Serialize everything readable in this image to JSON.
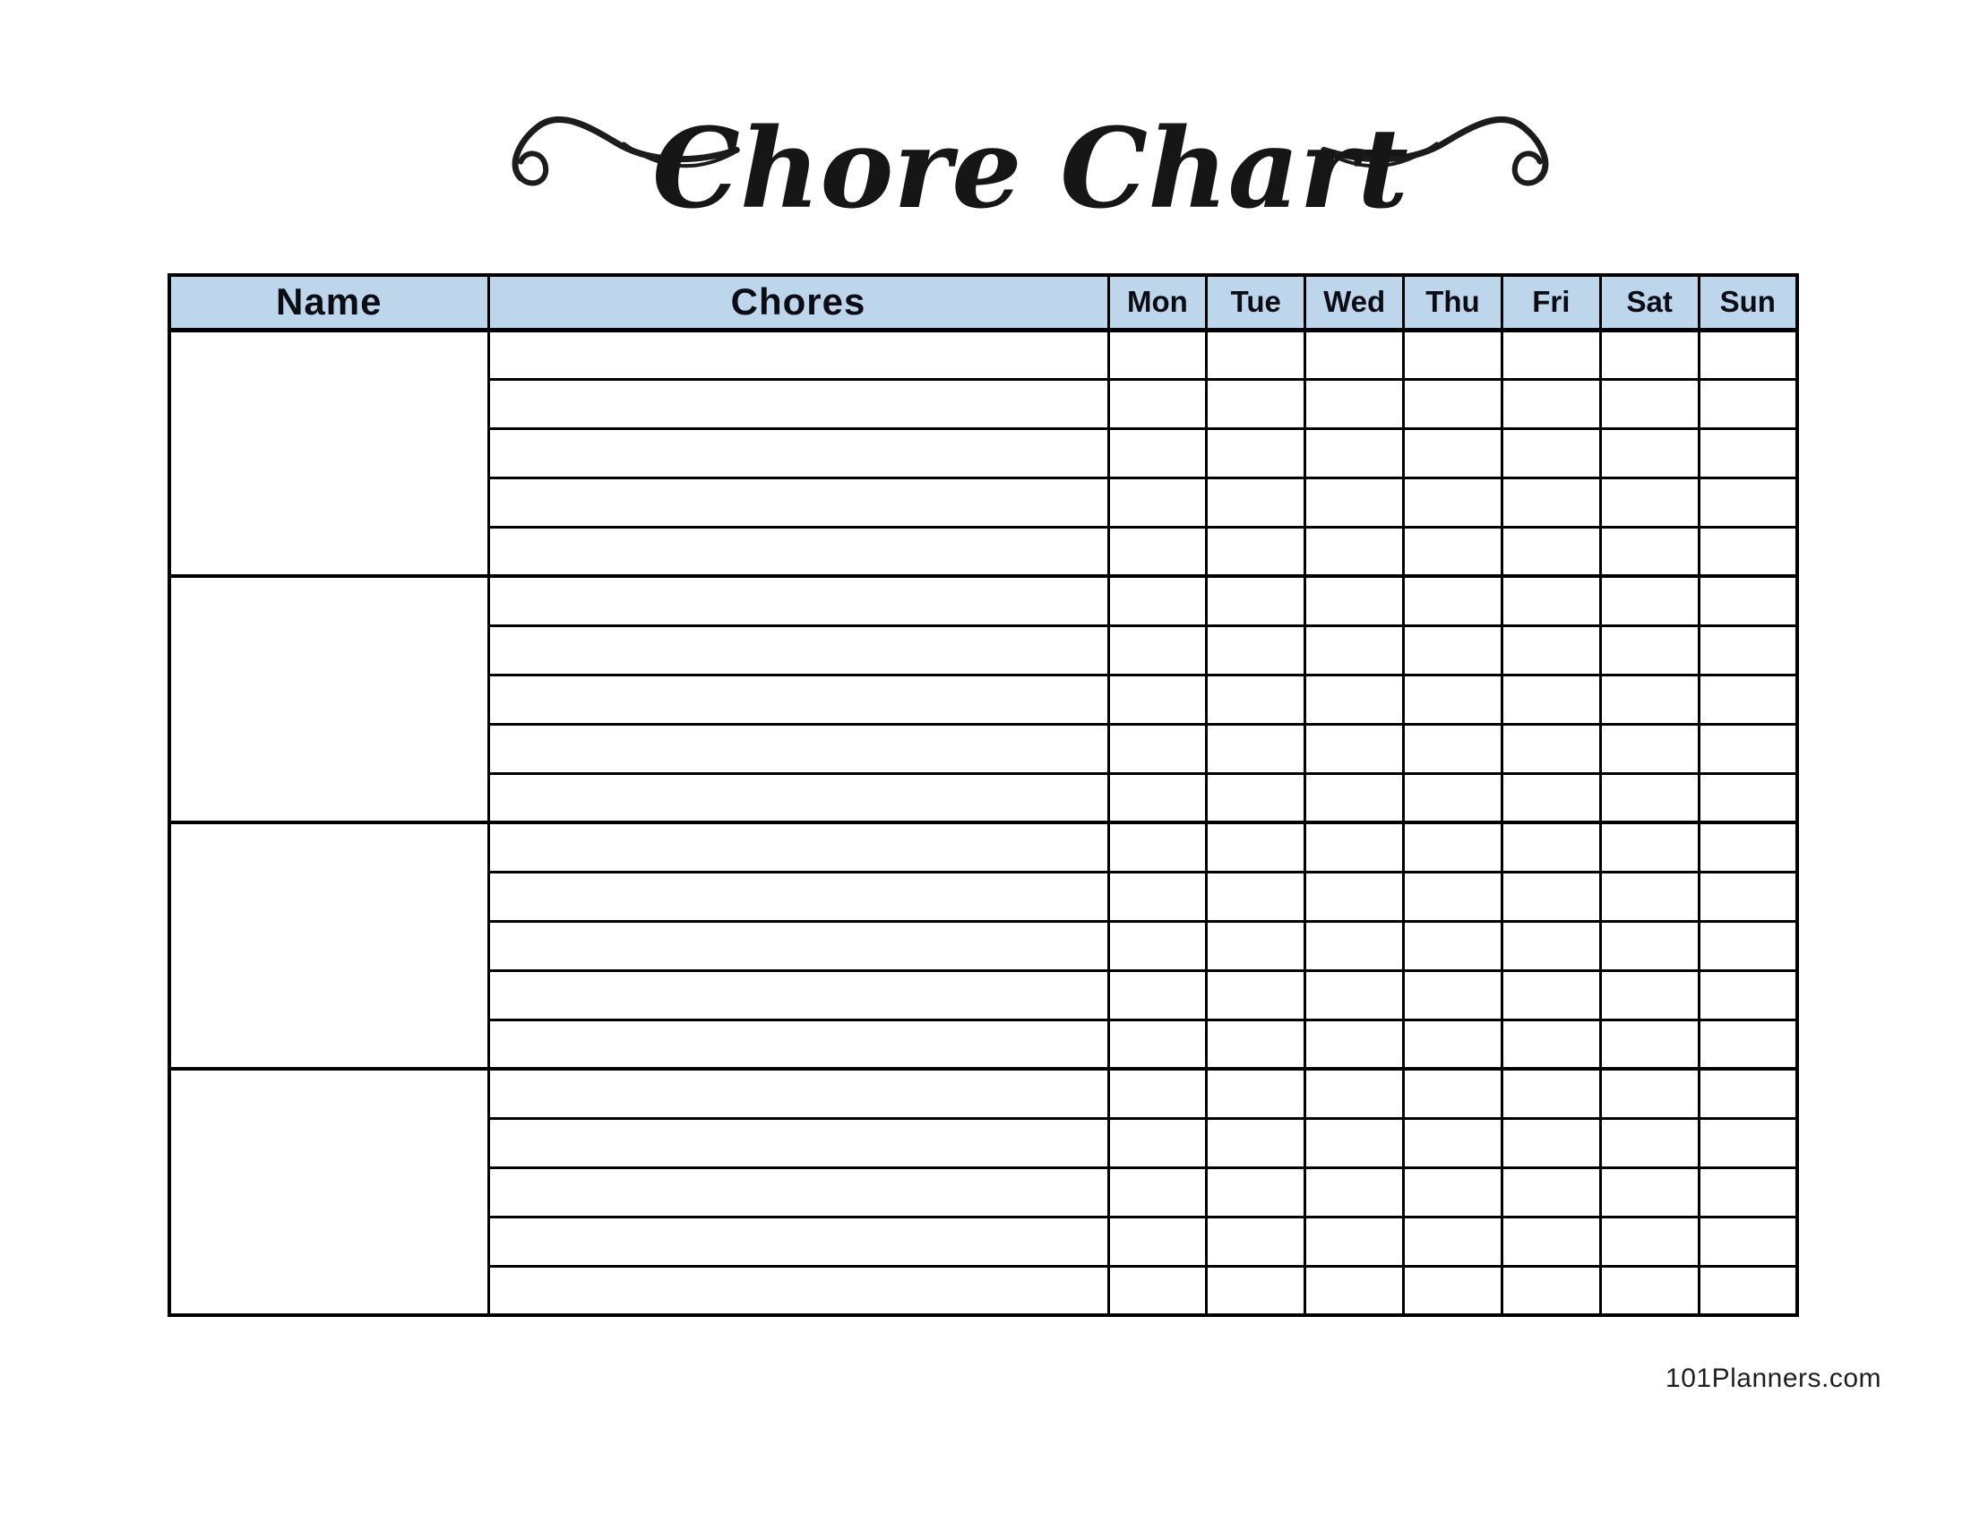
{
  "title": {
    "text": "Chore Chart"
  },
  "table": {
    "headers": {
      "name": "Name",
      "chores": "Chores",
      "days": [
        "Mon",
        "Tue",
        "Wed",
        "Thu",
        "Fri",
        "Sat",
        "Sun"
      ]
    },
    "sections": 4,
    "rows_per_section": 5,
    "header_bg": "#bdd6ec",
    "border_color": "#000000"
  },
  "footer": {
    "website": "101Planners.com"
  }
}
